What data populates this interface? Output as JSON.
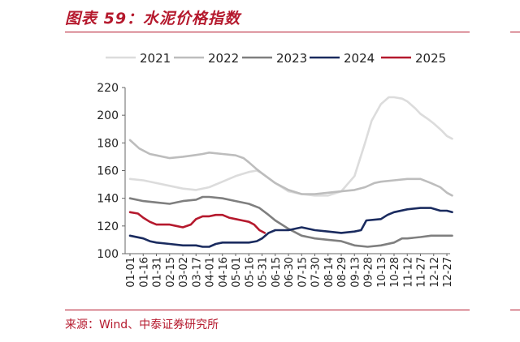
{
  "header": {
    "title": "图表 59：水泥价格指数"
  },
  "footer": {
    "source": "来源：Wind、中泰证券研究所"
  },
  "chart_data": {
    "type": "line",
    "title": "图表 59：水泥价格指数",
    "xlabel": "",
    "ylabel": "",
    "ylim": [
      100,
      220
    ],
    "yticks": [
      100,
      120,
      140,
      160,
      180,
      200,
      220
    ],
    "grid": false,
    "legend": "top",
    "categories": [
      "01-01",
      "01-16",
      "01-31",
      "02-15",
      "03-02",
      "03-17",
      "04-01",
      "04-16",
      "05-01",
      "05-16",
      "05-31",
      "06-15",
      "06-30",
      "07-15",
      "07-30",
      "08-14",
      "08-29",
      "09-13",
      "09-28",
      "10-13",
      "10-28",
      "11-12",
      "11-27",
      "12-12",
      "12-27"
    ],
    "series": [
      {
        "name": "2021",
        "color": "#dcdcdc",
        "points": [
          [
            0,
            154
          ],
          [
            1,
            153
          ],
          [
            2,
            151
          ],
          [
            3,
            149
          ],
          [
            4,
            147
          ],
          [
            5,
            146
          ],
          [
            6,
            148
          ],
          [
            7,
            152
          ],
          [
            8,
            156
          ],
          [
            9,
            159
          ],
          [
            9.6,
            160
          ],
          [
            10,
            158
          ],
          [
            11,
            151
          ],
          [
            12,
            145
          ],
          [
            13,
            143
          ],
          [
            14,
            142
          ],
          [
            15,
            142
          ],
          [
            16,
            145
          ],
          [
            17,
            156
          ],
          [
            17.8,
            180
          ],
          [
            18.3,
            196
          ],
          [
            19,
            208
          ],
          [
            19.6,
            213
          ],
          [
            20,
            213
          ],
          [
            20.6,
            212
          ],
          [
            21,
            210
          ],
          [
            21.6,
            205
          ],
          [
            22,
            201
          ],
          [
            22.6,
            197
          ],
          [
            23,
            194
          ],
          [
            23.6,
            189
          ],
          [
            24,
            185
          ],
          [
            24.4,
            183
          ]
        ]
      },
      {
        "name": "2022",
        "color": "#bdbdbd",
        "points": [
          [
            0,
            182
          ],
          [
            0.7,
            176
          ],
          [
            1.5,
            172
          ],
          [
            2,
            171
          ],
          [
            3,
            169
          ],
          [
            4,
            170
          ],
          [
            4.8,
            171
          ],
          [
            5.5,
            172
          ],
          [
            6,
            173
          ],
          [
            7,
            172
          ],
          [
            8,
            171
          ],
          [
            8.6,
            169
          ],
          [
            9,
            166
          ],
          [
            9.6,
            161
          ],
          [
            10,
            158
          ],
          [
            11,
            151
          ],
          [
            12,
            146
          ],
          [
            13,
            143
          ],
          [
            14,
            143
          ],
          [
            15,
            144
          ],
          [
            16,
            145
          ],
          [
            17,
            146
          ],
          [
            17.8,
            148
          ],
          [
            18.5,
            151
          ],
          [
            19,
            152
          ],
          [
            20,
            153
          ],
          [
            21,
            154
          ],
          [
            22,
            154
          ],
          [
            22.8,
            151
          ],
          [
            23.5,
            148
          ],
          [
            24,
            144
          ],
          [
            24.4,
            142
          ]
        ]
      },
      {
        "name": "2023",
        "color": "#7f7f7f",
        "points": [
          [
            0,
            140
          ],
          [
            1,
            138
          ],
          [
            2,
            137
          ],
          [
            3,
            136
          ],
          [
            4,
            138
          ],
          [
            5,
            139
          ],
          [
            5.5,
            141
          ],
          [
            6,
            141
          ],
          [
            7,
            140
          ],
          [
            8,
            138
          ],
          [
            9,
            136
          ],
          [
            9.8,
            133
          ],
          [
            10.5,
            128
          ],
          [
            11,
            124
          ],
          [
            11.5,
            121
          ],
          [
            12,
            118
          ],
          [
            13,
            113
          ],
          [
            14,
            111
          ],
          [
            15,
            110
          ],
          [
            16,
            109
          ],
          [
            17,
            106
          ],
          [
            18,
            105
          ],
          [
            19,
            106
          ],
          [
            20,
            108
          ],
          [
            20.6,
            111
          ],
          [
            21,
            111
          ],
          [
            22,
            112
          ],
          [
            22.8,
            113
          ],
          [
            23.5,
            113
          ],
          [
            24,
            113
          ],
          [
            24.4,
            113
          ]
        ]
      },
      {
        "name": "2024",
        "color": "#1a2b5f",
        "points": [
          [
            0,
            113
          ],
          [
            1,
            111
          ],
          [
            1.5,
            109
          ],
          [
            2,
            108
          ],
          [
            3,
            107
          ],
          [
            4,
            106
          ],
          [
            5,
            106
          ],
          [
            5.5,
            105
          ],
          [
            6,
            105
          ],
          [
            6.5,
            107
          ],
          [
            7,
            108
          ],
          [
            8,
            108
          ],
          [
            9,
            108
          ],
          [
            9.6,
            109
          ],
          [
            10,
            111
          ],
          [
            10.5,
            115
          ],
          [
            11,
            117
          ],
          [
            12,
            117
          ],
          [
            13,
            119
          ],
          [
            14,
            117
          ],
          [
            15,
            116
          ],
          [
            16,
            115
          ],
          [
            17,
            116
          ],
          [
            17.5,
            117
          ],
          [
            17.9,
            124
          ],
          [
            19,
            125
          ],
          [
            19.5,
            128
          ],
          [
            20,
            130
          ],
          [
            21,
            132
          ],
          [
            22,
            133
          ],
          [
            22.8,
            133
          ],
          [
            23.5,
            131
          ],
          [
            24,
            131
          ],
          [
            24.4,
            130
          ]
        ]
      },
      {
        "name": "2025",
        "color": "#b5192d",
        "points": [
          [
            0,
            130
          ],
          [
            0.6,
            129
          ],
          [
            1,
            126
          ],
          [
            1.5,
            123
          ],
          [
            2,
            121
          ],
          [
            3,
            121
          ],
          [
            3.5,
            120
          ],
          [
            4,
            119
          ],
          [
            4.6,
            121
          ],
          [
            5,
            125
          ],
          [
            5.5,
            127
          ],
          [
            6,
            127
          ],
          [
            6.5,
            128
          ],
          [
            7,
            128
          ],
          [
            7.5,
            126
          ],
          [
            8,
            125
          ],
          [
            8.5,
            124
          ],
          [
            9,
            123
          ],
          [
            9.4,
            121
          ],
          [
            9.8,
            117
          ],
          [
            10.2,
            115
          ]
        ]
      }
    ]
  }
}
